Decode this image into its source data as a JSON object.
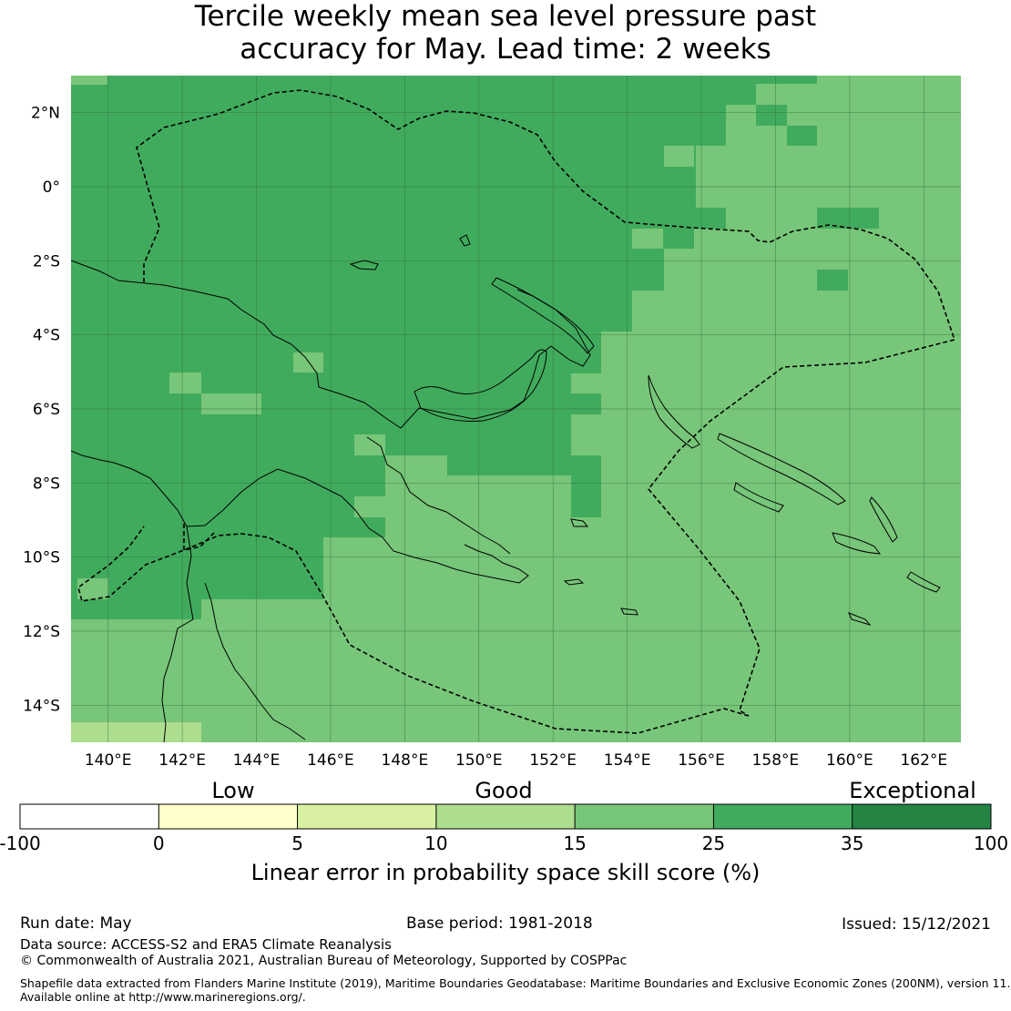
{
  "title": {
    "line1": "Tercile weekly mean sea level pressure past",
    "line2": "accuracy for May. Lead time: 2 weeks"
  },
  "map": {
    "lon_range": [
      139,
      163
    ],
    "lat_range": [
      -15,
      3
    ],
    "lon_ticks": [
      "140°E",
      "142°E",
      "144°E",
      "146°E",
      "148°E",
      "150°E",
      "152°E",
      "154°E",
      "156°E",
      "158°E",
      "160°E",
      "162°E"
    ],
    "lat_ticks": [
      "2°N",
      "0°",
      "2°S",
      "4°S",
      "6°S",
      "8°S",
      "10°S",
      "12°S",
      "14°S"
    ],
    "boundary_style": "dashed",
    "gridlines": true
  },
  "colorbar": {
    "category_labels": [
      "Low",
      "Good",
      "Exceptional"
    ],
    "tick_labels": [
      "-100",
      "0",
      "5",
      "10",
      "15",
      "25",
      "35",
      "100"
    ],
    "colors": [
      "#ffffff",
      "#ffffcc",
      "#d9f0a3",
      "#addd8e",
      "#78c679",
      "#41ab5d",
      "#238443"
    ],
    "title": "Linear error in probability space skill score (%)"
  },
  "footer": {
    "run_date": "Run date: May",
    "base_period": "Base period: 1981-2018",
    "issued": "Issued: 15/12/2021",
    "data_source": "Data source: ACCESS-S2 and ERA5 Climate Reanalysis",
    "copyright": "© Commonwealth of Australia 2021, Australian Bureau of Meteorology, Supported by COSPPac",
    "shapefile_line1": "Shapefile data extracted from Flanders Marine Institute (2019), Maritime Boundaries Geodatabase: Maritime Boundaries and Exclusive Economic Zones (200NM), version 11.",
    "shapefile_line2": "Available online at http://www.marineregions.org/."
  }
}
